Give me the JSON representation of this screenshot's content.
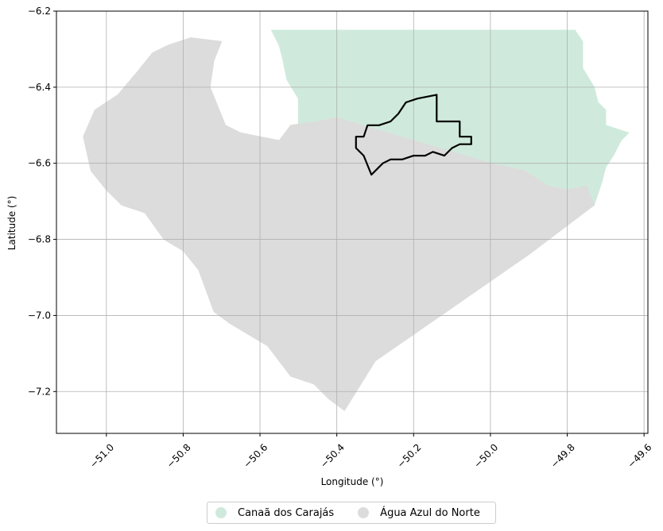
{
  "chart_data": {
    "type": "map",
    "xlabel": "Longitude (°)",
    "ylabel": "Latitude (°)",
    "xlim": [
      -51.13,
      -49.59
    ],
    "ylim": [
      -7.31,
      -6.2
    ],
    "x_ticks": [
      -51.0,
      -50.8,
      -50.6,
      -50.4,
      -50.2,
      -50.0,
      -49.8,
      -49.6
    ],
    "x_tick_labels": [
      "−51.0",
      "−50.8",
      "−50.6",
      "−50.4",
      "−50.2",
      "−50.0",
      "−49.8",
      "−49.6"
    ],
    "y_ticks": [
      -6.2,
      -6.4,
      -6.6,
      -6.8,
      -7.0,
      -7.2
    ],
    "y_tick_labels": [
      "−6.2",
      "−6.4",
      "−6.6",
      "−6.8",
      "−7.0",
      "−7.2"
    ],
    "grid": true,
    "regions": [
      {
        "name": "Canaã dos Carajás",
        "color": "#cfeadc",
        "boundary": [
          [
            -50.57,
            -6.25
          ],
          [
            -49.78,
            -6.25
          ],
          [
            -49.76,
            -6.28
          ],
          [
            -49.76,
            -6.35
          ],
          [
            -49.73,
            -6.4
          ],
          [
            -49.72,
            -6.44
          ],
          [
            -49.7,
            -6.46
          ],
          [
            -49.7,
            -6.5
          ],
          [
            -49.67,
            -6.51
          ],
          [
            -49.64,
            -6.52
          ],
          [
            -49.66,
            -6.54
          ],
          [
            -49.68,
            -6.58
          ],
          [
            -49.7,
            -6.61
          ],
          [
            -49.71,
            -6.65
          ],
          [
            -49.72,
            -6.68
          ],
          [
            -49.73,
            -6.71
          ],
          [
            -49.75,
            -6.66
          ],
          [
            -49.8,
            -6.67
          ],
          [
            -49.85,
            -6.66
          ],
          [
            -49.91,
            -6.62
          ],
          [
            -50.0,
            -6.6
          ],
          [
            -50.1,
            -6.57
          ],
          [
            -50.2,
            -6.54
          ],
          [
            -50.3,
            -6.51
          ],
          [
            -50.4,
            -6.48
          ],
          [
            -50.45,
            -6.49
          ],
          [
            -50.5,
            -6.5
          ],
          [
            -50.5,
            -6.43
          ],
          [
            -50.53,
            -6.38
          ],
          [
            -50.54,
            -6.33
          ],
          [
            -50.55,
            -6.29
          ]
        ]
      },
      {
        "name": "Água Azul do Norte",
        "color": "#dcdcdc",
        "boundary": [
          [
            -50.7,
            -6.28
          ],
          [
            -50.72,
            -6.33
          ],
          [
            -50.73,
            -6.4
          ],
          [
            -50.71,
            -6.45
          ],
          [
            -50.69,
            -6.5
          ],
          [
            -50.65,
            -6.52
          ],
          [
            -50.6,
            -6.53
          ],
          [
            -50.55,
            -6.54
          ],
          [
            -50.52,
            -6.5
          ],
          [
            -50.45,
            -6.49
          ],
          [
            -50.4,
            -6.48
          ],
          [
            -50.3,
            -6.51
          ],
          [
            -50.2,
            -6.54
          ],
          [
            -50.1,
            -6.57
          ],
          [
            -50.0,
            -6.6
          ],
          [
            -49.91,
            -6.62
          ],
          [
            -49.85,
            -6.66
          ],
          [
            -49.8,
            -6.67
          ],
          [
            -49.75,
            -6.66
          ],
          [
            -49.73,
            -6.71
          ],
          [
            -49.9,
            -6.84
          ],
          [
            -50.1,
            -6.98
          ],
          [
            -50.3,
            -7.12
          ],
          [
            -50.38,
            -7.25
          ],
          [
            -50.42,
            -7.22
          ],
          [
            -50.46,
            -7.18
          ],
          [
            -50.52,
            -7.16
          ],
          [
            -50.55,
            -7.12
          ],
          [
            -50.58,
            -7.08
          ],
          [
            -50.63,
            -7.05
          ],
          [
            -50.68,
            -7.02
          ],
          [
            -50.72,
            -6.99
          ],
          [
            -50.76,
            -6.88
          ],
          [
            -50.8,
            -6.83
          ],
          [
            -50.85,
            -6.8
          ],
          [
            -50.9,
            -6.73
          ],
          [
            -50.96,
            -6.71
          ],
          [
            -51.0,
            -6.67
          ],
          [
            -51.04,
            -6.62
          ],
          [
            -51.06,
            -6.53
          ],
          [
            -51.03,
            -6.46
          ],
          [
            -50.97,
            -6.42
          ],
          [
            -50.92,
            -6.36
          ],
          [
            -50.88,
            -6.31
          ],
          [
            -50.84,
            -6.29
          ],
          [
            -50.78,
            -6.27
          ]
        ]
      }
    ],
    "highlight_outline": [
      [
        -50.35,
        -6.53
      ],
      [
        -50.33,
        -6.53
      ],
      [
        -50.32,
        -6.5
      ],
      [
        -50.29,
        -6.5
      ],
      [
        -50.26,
        -6.49
      ],
      [
        -50.24,
        -6.47
      ],
      [
        -50.22,
        -6.44
      ],
      [
        -50.19,
        -6.43
      ],
      [
        -50.14,
        -6.42
      ],
      [
        -50.14,
        -6.49
      ],
      [
        -50.08,
        -6.49
      ],
      [
        -50.08,
        -6.53
      ],
      [
        -50.05,
        -6.53
      ],
      [
        -50.05,
        -6.55
      ],
      [
        -50.08,
        -6.55
      ],
      [
        -50.1,
        -6.56
      ],
      [
        -50.12,
        -6.58
      ],
      [
        -50.15,
        -6.57
      ],
      [
        -50.17,
        -6.58
      ],
      [
        -50.2,
        -6.58
      ],
      [
        -50.23,
        -6.59
      ],
      [
        -50.26,
        -6.59
      ],
      [
        -50.28,
        -6.6
      ],
      [
        -50.3,
        -6.62
      ],
      [
        -50.31,
        -6.63
      ],
      [
        -50.33,
        -6.58
      ],
      [
        -50.35,
        -6.56
      ]
    ]
  },
  "legend": {
    "items": [
      {
        "label": "Canaã dos Carajás",
        "color": "#cfeadc"
      },
      {
        "label": "Água Azul do Norte",
        "color": "#dcdcdc"
      }
    ]
  }
}
